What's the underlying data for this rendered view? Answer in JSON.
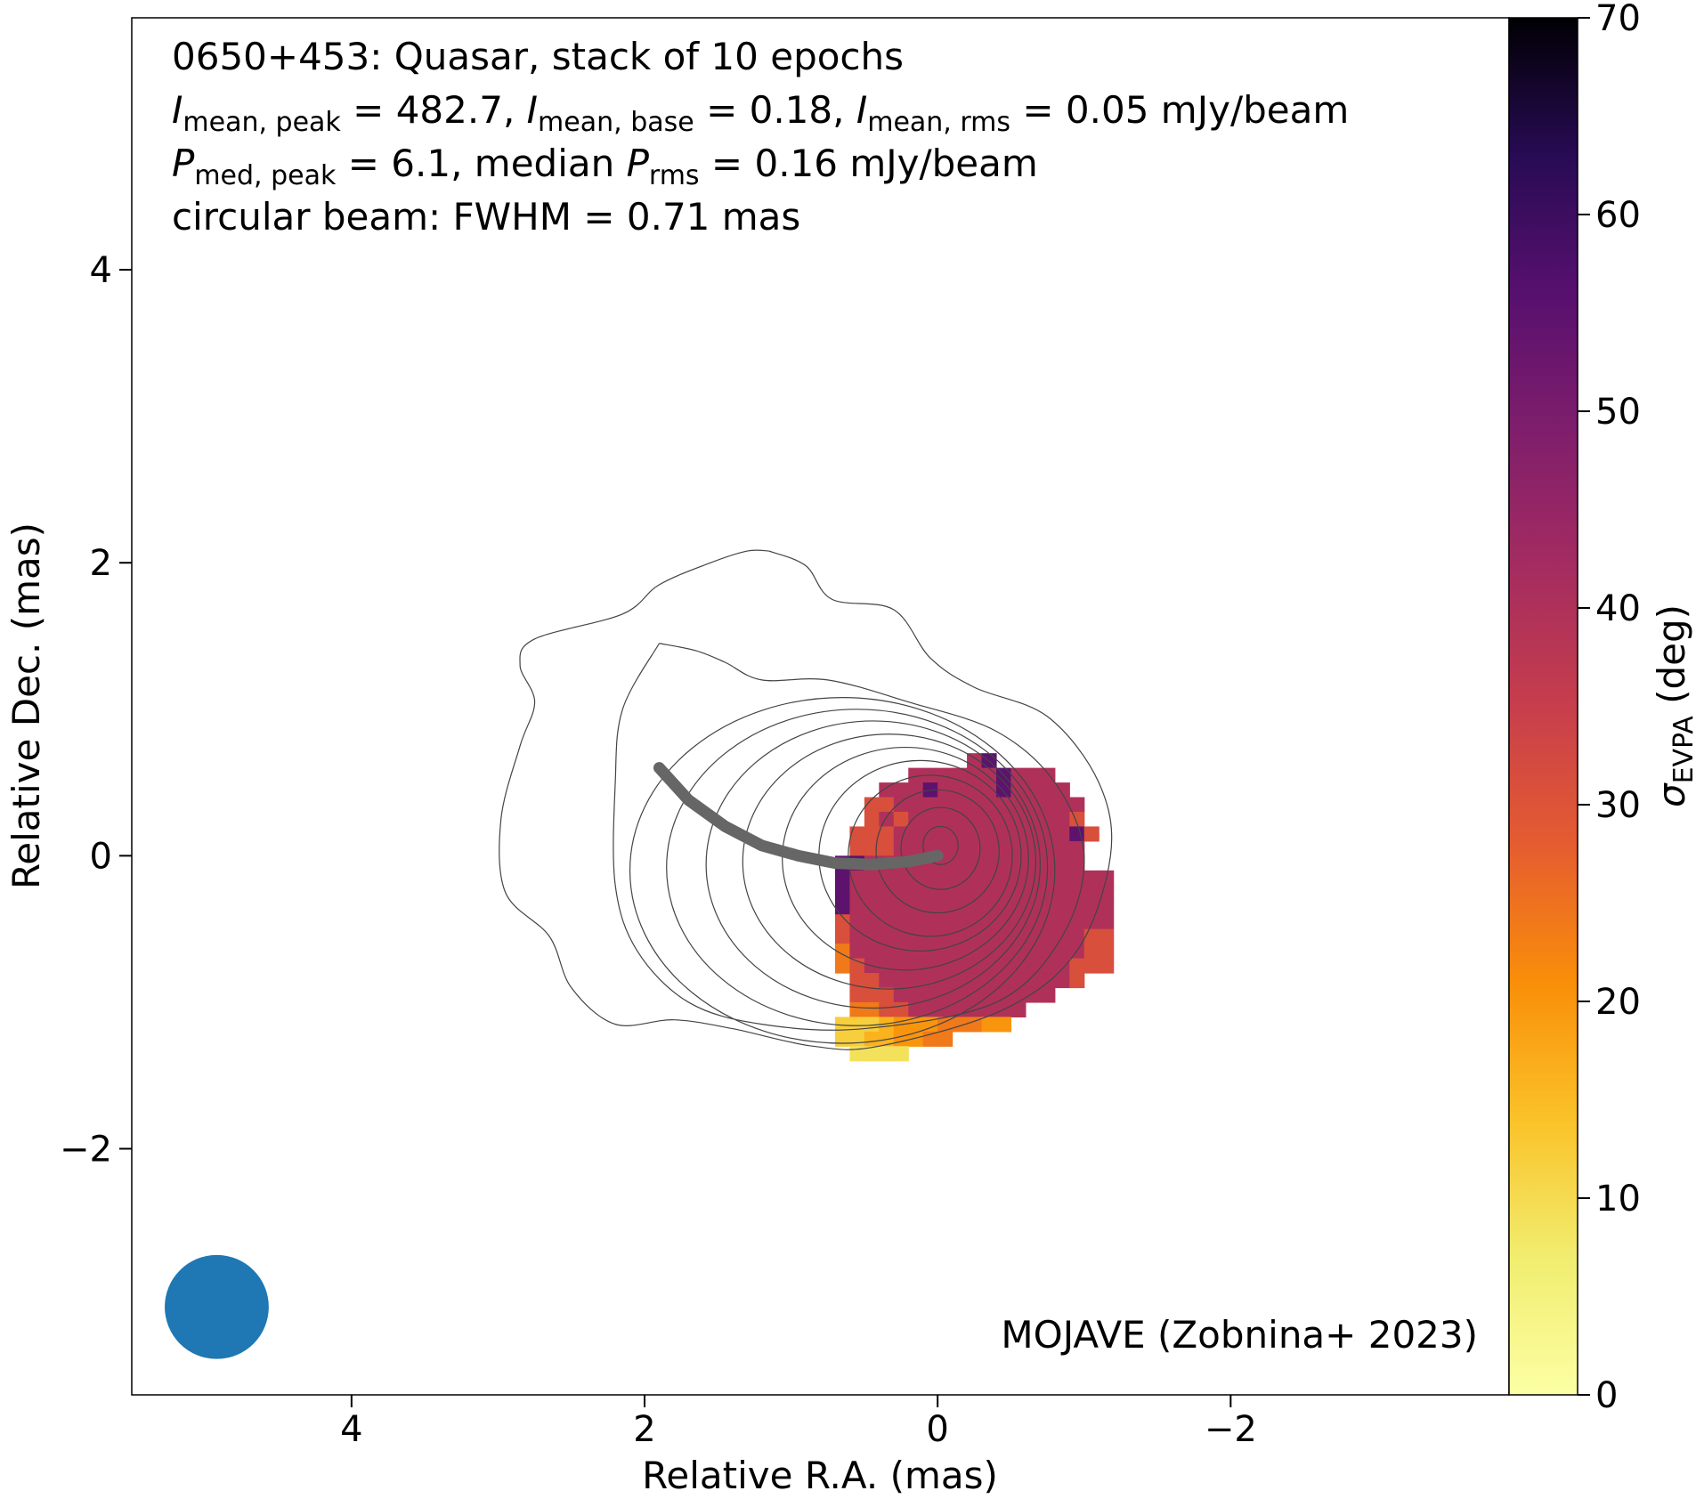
{
  "chart_data": {
    "type": "heatmap",
    "info_lines": [
      [
        {
          "t": "0650+453: Quasar, stack of 10 epochs"
        }
      ],
      [
        {
          "t": "I",
          "it": true
        },
        {
          "t": "mean, peak",
          "sub": true
        },
        {
          "t": " = 482.7, "
        },
        {
          "t": "I",
          "it": true
        },
        {
          "t": "mean, base",
          "sub": true
        },
        {
          "t": " = 0.18, "
        },
        {
          "t": "I",
          "it": true
        },
        {
          "t": "mean, rms",
          "sub": true
        },
        {
          "t": " = 0.05 mJy/beam"
        }
      ],
      [
        {
          "t": "P",
          "it": true
        },
        {
          "t": "med, peak",
          "sub": true
        },
        {
          "t": " = 6.1, median "
        },
        {
          "t": "P",
          "it": true
        },
        {
          "t": "rms",
          "sub": true
        },
        {
          "t": " = 0.16 mJy/beam"
        }
      ],
      [
        {
          "t": "circular beam: FWHM = 0.71 mas"
        }
      ]
    ],
    "credit": "MOJAVE (Zobnina+ 2023)",
    "xlabel": "Relative R.A. (mas)",
    "ylabel": "Relative Dec. (mas)",
    "colorbar_label": [
      {
        "t": "σ",
        "it": true
      },
      {
        "t": "EVPA",
        "sub": true
      },
      {
        "t": " (deg)"
      }
    ],
    "xlim": [
      5.5,
      -3.9
    ],
    "ylim": [
      -3.68,
      5.72
    ],
    "x_ticks": [
      {
        "v": 4,
        "label": "4"
      },
      {
        "v": 2,
        "label": "2"
      },
      {
        "v": 0,
        "label": "0"
      },
      {
        "v": -2,
        "label": "−2"
      }
    ],
    "y_ticks": [
      {
        "v": 4,
        "label": "4"
      },
      {
        "v": 2,
        "label": "2"
      },
      {
        "v": 0,
        "label": "0"
      },
      {
        "v": -2,
        "label": "−2"
      }
    ],
    "colorbar_range": [
      0,
      70
    ],
    "colorbar_ticks": [
      {
        "v": 70,
        "label": "70"
      },
      {
        "v": 60,
        "label": "60"
      },
      {
        "v": 50,
        "label": "50"
      },
      {
        "v": 40,
        "label": "40"
      },
      {
        "v": 30,
        "label": "30"
      },
      {
        "v": 20,
        "label": "20"
      },
      {
        "v": 10,
        "label": "10"
      },
      {
        "v": 0,
        "label": "0"
      }
    ],
    "colormap": "inferno_r",
    "beam": {
      "x": 4.92,
      "y": -3.08,
      "fwhm": 0.71,
      "color": "#1f77b4"
    },
    "pixel_size_mas": 0.1,
    "sigma_evpa_grid": {
      "x_start": 0.8,
      "y_start": 0.7,
      "rows": [
        "..........21.........",
        "......2222221222.....",
        "....2221222212222....",
        "...332222222222222...",
        "...323222222222223...",
        "..33322222222222213..",
        "..3332222222222222...",
        ".11222222222222222...",
        ".1222222222222222222.",
        ".1222222222222222222.",
        ".1222222222222222222.",
        ".3222222222222222222.",
        ".3222222222222222233.",
        ".4222222222222222233.",
        ".4322222222222222333.",
        "..3322222222222223...",
        "..33322222222222.....",
        "..443322222222.......",
        ".777655544455........",
        ".77665544............",
        "..8888..............."
      ],
      "values": {
        "1": 55,
        "2": 40,
        "3": 31,
        "4": 24,
        "5": 20,
        "6": 16,
        "7": 12,
        "8": 9
      }
    },
    "contours": [
      {
        "rx": 0.12,
        "ry": 0.13,
        "cx": -0.02,
        "cy": 0.07
      },
      {
        "rx": 0.27,
        "ry": 0.28,
        "cx": -0.02,
        "cy": 0.05
      },
      {
        "rx": 0.42,
        "ry": 0.42,
        "cx": 0.0,
        "cy": 0.03
      },
      {
        "rx": 0.56,
        "ry": 0.55,
        "cx": 0.05,
        "cy": 0.0
      },
      {
        "rx": 0.69,
        "ry": 0.65,
        "cx": 0.12,
        "cy": 0.0
      },
      {
        "rx": 0.84,
        "ry": 0.76,
        "cx": 0.22,
        "cy": -0.02
      },
      {
        "rx": 1.0,
        "ry": 0.87,
        "cx": 0.33,
        "cy": -0.04
      },
      {
        "rx": 1.14,
        "ry": 0.98,
        "cx": 0.44,
        "cy": -0.06
      },
      {
        "rx": 1.3,
        "ry": 1.08,
        "cx": 0.55,
        "cy": -0.08
      },
      {
        "rx": 1.45,
        "ry": 1.18,
        "cx": 0.65,
        "cy": -0.1
      }
    ],
    "outer_contours": [
      [
        [
          1.9,
          1.45
        ],
        [
          1.65,
          1.4
        ],
        [
          1.45,
          1.32
        ],
        [
          1.2,
          1.2
        ],
        [
          0.75,
          1.2
        ],
        [
          0.2,
          1.05
        ],
        [
          -0.4,
          0.85
        ],
        [
          -0.8,
          0.5
        ],
        [
          -1.0,
          0.0
        ],
        [
          -0.85,
          -0.55
        ],
        [
          -0.4,
          -1.0
        ],
        [
          0.5,
          -1.18
        ],
        [
          1.2,
          -1.15
        ],
        [
          1.7,
          -1.0
        ],
        [
          2.05,
          -0.65
        ],
        [
          2.2,
          -0.2
        ],
        [
          2.2,
          0.5
        ],
        [
          2.15,
          1.0
        ],
        [
          1.9,
          1.45
        ]
      ],
      [
        [
          1.15,
          2.08
        ],
        [
          0.9,
          1.98
        ],
        [
          0.72,
          1.75
        ],
        [
          0.3,
          1.68
        ],
        [
          0.05,
          1.35
        ],
        [
          -0.25,
          1.15
        ],
        [
          -0.75,
          0.95
        ],
        [
          -1.1,
          0.5
        ],
        [
          -1.18,
          0.0
        ],
        [
          -0.95,
          -0.65
        ],
        [
          -0.45,
          -1.05
        ],
        [
          0.4,
          -1.3
        ],
        [
          0.85,
          -1.3
        ],
        [
          1.4,
          -1.18
        ],
        [
          1.8,
          -1.12
        ],
        [
          2.2,
          -1.15
        ],
        [
          2.5,
          -0.9
        ],
        [
          2.65,
          -0.55
        ],
        [
          2.95,
          -0.25
        ],
        [
          2.98,
          0.25
        ],
        [
          2.85,
          0.75
        ],
        [
          2.75,
          1.05
        ],
        [
          2.85,
          1.3
        ],
        [
          2.75,
          1.48
        ],
        [
          2.15,
          1.65
        ],
        [
          1.9,
          1.85
        ],
        [
          1.55,
          2.0
        ],
        [
          1.3,
          2.08
        ],
        [
          1.15,
          2.08
        ]
      ]
    ],
    "ridge_line": {
      "color": "#666666",
      "points": [
        [
          1.9,
          0.6
        ],
        [
          1.7,
          0.38
        ],
        [
          1.45,
          0.2
        ],
        [
          1.2,
          0.07
        ],
        [
          0.95,
          0.0
        ],
        [
          0.7,
          -0.05
        ],
        [
          0.45,
          -0.06
        ],
        [
          0.2,
          -0.04
        ],
        [
          0.0,
          0.0
        ]
      ]
    }
  }
}
